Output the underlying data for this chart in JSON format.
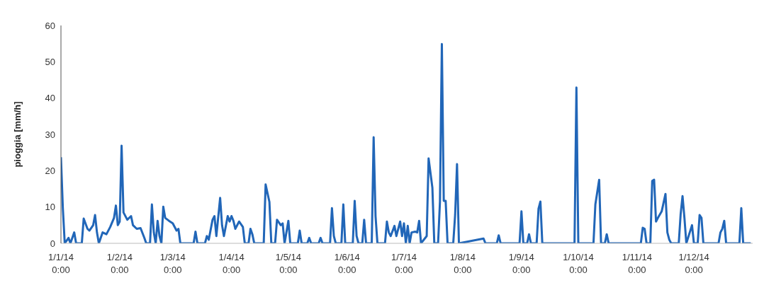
{
  "chart_data": {
    "type": "line",
    "ylabel": "pioggia [mm/h]",
    "xlim": [
      "2014-01-01",
      "2015-01-01"
    ],
    "ylim": [
      0,
      60
    ],
    "yticks": [
      0,
      10,
      20,
      30,
      40,
      50,
      60
    ],
    "xticks": [
      {
        "value": "2014-01-01",
        "label": "1/1/14 0:00"
      },
      {
        "value": "2014-02-01",
        "label": "1/2/14 0:00"
      },
      {
        "value": "2014-03-01",
        "label": "1/3/14 0:00"
      },
      {
        "value": "2014-04-01",
        "label": "1/4/14 0:00"
      },
      {
        "value": "2014-05-01",
        "label": "1/5/14 0:00"
      },
      {
        "value": "2014-06-01",
        "label": "1/6/14 0:00"
      },
      {
        "value": "2014-07-01",
        "label": "1/7/14 0:00"
      },
      {
        "value": "2014-08-01",
        "label": "1/8/14 0:00"
      },
      {
        "value": "2014-09-01",
        "label": "1/9/14 0:00"
      },
      {
        "value": "2014-10-01",
        "label": "1/10/14 0:00"
      },
      {
        "value": "2014-11-01",
        "label": "1/11/14 0:00"
      },
      {
        "value": "2014-12-01",
        "label": "1/12/14 0:00"
      }
    ],
    "grid": false,
    "legend": false,
    "marker": "none",
    "line_style": "solid",
    "x": [
      "2014-01-01",
      "2014-01-02",
      "2014-01-03",
      "2014-01-05",
      "2014-01-06",
      "2014-01-08",
      "2014-01-09",
      "2014-01-12",
      "2014-01-13",
      "2014-01-15",
      "2014-01-16",
      "2014-01-18",
      "2014-01-19",
      "2014-01-20",
      "2014-01-21",
      "2014-01-23",
      "2014-01-25",
      "2014-01-27",
      "2014-01-29",
      "2014-01-30",
      "2014-01-31",
      "2014-02-01",
      "2014-02-02",
      "2014-02-03",
      "2014-02-05",
      "2014-02-07",
      "2014-02-08",
      "2014-02-10",
      "2014-02-12",
      "2014-02-14",
      "2014-02-15",
      "2014-02-17",
      "2014-02-18",
      "2014-02-19",
      "2014-02-20",
      "2014-02-21",
      "2014-02-22",
      "2014-02-23",
      "2014-02-24",
      "2014-02-25",
      "2014-02-27",
      "2014-03-01",
      "2014-03-03",
      "2014-03-04",
      "2014-03-05",
      "2014-03-12",
      "2014-03-13",
      "2014-03-14",
      "2014-03-18",
      "2014-03-19",
      "2014-03-20",
      "2014-03-22",
      "2014-03-23",
      "2014-03-24",
      "2014-03-26",
      "2014-03-27",
      "2014-03-28",
      "2014-03-30",
      "2014-03-31",
      "2014-04-01",
      "2014-04-02",
      "2014-04-03",
      "2014-04-05",
      "2014-04-07",
      "2014-04-08",
      "2014-04-10",
      "2014-04-11",
      "2014-04-12",
      "2014-04-13",
      "2014-04-18",
      "2014-04-19",
      "2014-04-21",
      "2014-04-22",
      "2014-04-24",
      "2014-04-25",
      "2014-04-27",
      "2014-04-28",
      "2014-04-29",
      "2014-05-01",
      "2014-05-02",
      "2014-05-06",
      "2014-05-07",
      "2014-05-08",
      "2014-05-11",
      "2014-05-12",
      "2014-05-13",
      "2014-05-17",
      "2014-05-18",
      "2014-05-19",
      "2014-05-23",
      "2014-05-24",
      "2014-05-25",
      "2014-05-26",
      "2014-05-29",
      "2014-05-30",
      "2014-05-31",
      "2014-06-04",
      "2014-06-05",
      "2014-06-06",
      "2014-06-07",
      "2014-06-09",
      "2014-06-10",
      "2014-06-11",
      "2014-06-14",
      "2014-06-15",
      "2014-06-16",
      "2014-06-17",
      "2014-06-21",
      "2014-06-22",
      "2014-06-23",
      "2014-06-24",
      "2014-06-26",
      "2014-06-27",
      "2014-06-29",
      "2014-06-30",
      "2014-07-01",
      "2014-07-02",
      "2014-07-03",
      "2014-07-04",
      "2014-07-05",
      "2014-07-07",
      "2014-07-08",
      "2014-07-09",
      "2014-07-10",
      "2014-07-13",
      "2014-07-14",
      "2014-07-16",
      "2014-07-17",
      "2014-07-19",
      "2014-07-20",
      "2014-07-21",
      "2014-07-22",
      "2014-07-23",
      "2014-07-24",
      "2014-07-27",
      "2014-07-28",
      "2014-07-29",
      "2014-07-30",
      "2014-08-12",
      "2014-08-13",
      "2014-08-19",
      "2014-08-20",
      "2014-08-21",
      "2014-08-31",
      "2014-09-01",
      "2014-09-02",
      "2014-09-04",
      "2014-09-05",
      "2014-09-06",
      "2014-09-09",
      "2014-09-10",
      "2014-09-11",
      "2014-09-12",
      "2014-09-29",
      "2014-09-30",
      "2014-10-01",
      "2014-10-09",
      "2014-10-10",
      "2014-10-12",
      "2014-10-13",
      "2014-10-15",
      "2014-10-16",
      "2014-10-17",
      "2014-11-03",
      "2014-11-04",
      "2014-11-05",
      "2014-11-06",
      "2014-11-08",
      "2014-11-09",
      "2014-11-10",
      "2014-11-11",
      "2014-11-12",
      "2014-11-14",
      "2014-11-16",
      "2014-11-17",
      "2014-11-18",
      "2014-11-19",
      "2014-11-23",
      "2014-11-24",
      "2014-11-25",
      "2014-11-26",
      "2014-11-27",
      "2014-11-30",
      "2014-12-01",
      "2014-12-03",
      "2014-12-04",
      "2014-12-05",
      "2014-12-06",
      "2014-12-14",
      "2014-12-15",
      "2014-12-16",
      "2014-12-17",
      "2014-12-18",
      "2014-12-25",
      "2014-12-26",
      "2014-12-27",
      "2014-12-31"
    ],
    "series": [
      {
        "color": "#2166b8",
        "values": [
          23.7,
          9.7,
          0,
          1.5,
          0,
          3,
          0,
          0,
          6.8,
          4,
          3.5,
          5,
          7.8,
          3,
          0,
          3,
          2.5,
          4.5,
          7,
          10.4,
          5,
          6,
          26.9,
          8.5,
          6.5,
          7.5,
          5,
          4,
          4.2,
          1.5,
          0,
          0,
          10.7,
          3,
          0,
          6.2,
          2,
          0,
          10.1,
          7,
          6.2,
          5.5,
          3.5,
          4,
          0,
          0,
          3.2,
          0,
          0,
          2,
          1,
          6.5,
          7.5,
          2,
          12.5,
          5,
          2,
          7.5,
          6,
          7.5,
          6.2,
          4,
          6,
          4.5,
          0,
          0,
          4,
          2.5,
          0,
          0,
          16.2,
          11.4,
          0,
          0,
          6.5,
          5,
          5.5,
          0,
          6.2,
          0,
          0,
          3.5,
          0,
          0,
          1.5,
          0,
          0,
          1.5,
          0,
          0,
          9.7,
          2,
          0,
          0,
          10.7,
          0,
          0,
          11.7,
          2,
          0,
          0,
          6.5,
          0,
          0,
          29.2,
          7.5,
          0,
          0,
          6,
          3,
          2,
          4.8,
          2,
          6,
          2,
          5.5,
          0,
          4.8,
          0,
          3,
          3.2,
          3,
          6.2,
          0,
          2,
          23.4,
          15.3,
          0,
          0,
          11.5,
          54.9,
          11.7,
          11.7,
          0,
          0,
          7.8,
          21.8,
          0,
          1.3,
          0,
          0,
          2.2,
          0,
          0,
          8.8,
          0,
          0,
          2.5,
          0,
          0,
          9.5,
          11.5,
          0,
          0,
          42.9,
          0,
          0,
          10.7,
          17.5,
          0,
          0,
          2.5,
          0,
          0,
          4.3,
          4,
          0,
          0,
          17.2,
          17.5,
          6,
          7,
          8.8,
          13.6,
          3,
          1,
          0,
          0,
          8,
          13,
          7,
          0,
          5,
          0,
          0,
          7.8,
          7,
          0,
          0,
          3,
          4,
          6.2,
          0,
          0,
          9.7,
          0,
          0
        ]
      }
    ]
  }
}
